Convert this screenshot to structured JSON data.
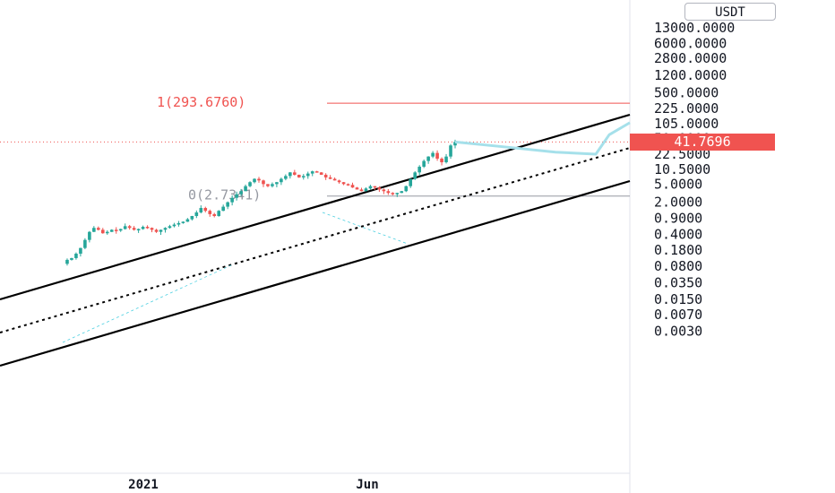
{
  "chart_data": {
    "type": "candlestick",
    "yscale": "log",
    "currency": "USDT",
    "price_scale_labels": [
      "13000.0000",
      "6000.0000",
      "2800.0000",
      "1200.0000",
      "500.0000",
      "225.0000",
      "105.0000",
      "50.0000",
      "22.5000",
      "10.5000",
      "5.0000",
      "2.0000",
      "0.9000",
      "0.4000",
      "0.1800",
      "0.0800",
      "0.0350",
      "0.0150",
      "0.0070",
      "0.0030"
    ],
    "price_scale_values": [
      13000,
      6000,
      2800,
      1200,
      500,
      225,
      105,
      50,
      22.5,
      10.5,
      5,
      2,
      0.9,
      0.4,
      0.18,
      0.08,
      0.035,
      0.015,
      0.007,
      0.003
    ],
    "time_labels": [
      "2021",
      "Jun"
    ],
    "last_price": "41.7696",
    "last_price_value": 41.7696,
    "fib_levels": [
      {
        "label": "1(293.6760)",
        "value": 293.676
      },
      {
        "label": "0(2.7341)",
        "value": 2.7341
      }
    ],
    "price_path": [
      [
        0.09,
        0.11,
        0.12,
        0.15,
        0.2,
        0.3,
        0.45,
        0.55,
        0.5,
        0.42,
        0.45,
        0.5,
        0.48,
        0.52,
        0.6,
        0.55,
        0.5,
        0.52,
        0.58,
        0.55,
        0.5,
        0.45,
        0.5,
        0.55,
        0.6,
        0.65,
        0.7,
        0.75,
        0.85,
        1.0,
        1.2,
        1.5,
        1.3,
        1.1,
        1.0,
        1.3,
        1.6,
        2.0,
        2.5,
        3.0,
        3.5,
        4.5,
        5.5,
        6.5,
        6.0,
        5.0,
        4.5,
        5.0,
        5.5,
        6.5,
        7.5,
        9.0,
        8.0,
        7.0,
        7.5,
        8.5,
        9.5,
        9.0,
        8.0,
        7.0,
        6.5,
        6.0,
        5.5,
        5.0,
        4.8,
        4.2,
        3.8,
        3.5,
        4.0,
        4.5,
        4.2,
        3.8,
        3.5,
        3.2,
        3.0,
        3.2,
        3.5,
        4.5,
        6.5,
        9.0,
        12.0,
        16.0,
        20.0,
        24.0,
        18.0,
        15.0,
        20.0,
        35.0,
        41.7696
      ]
    ],
    "projection": [
      41.7696,
      33,
      25,
      22.5,
      60,
      110
    ],
    "grid": false,
    "legend": "none"
  }
}
